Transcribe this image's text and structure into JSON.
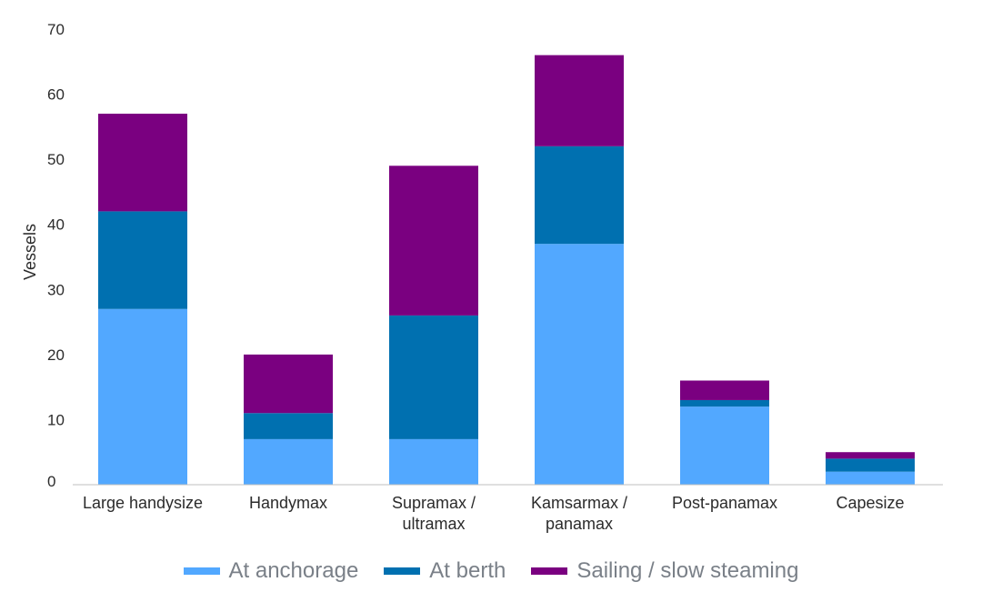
{
  "chart_data": {
    "type": "bar",
    "stacked": true,
    "title": "",
    "xlabel": "",
    "ylabel": "Vessels",
    "ylim": [
      0,
      70
    ],
    "yticks": [
      0,
      10,
      20,
      30,
      40,
      50,
      60,
      70
    ],
    "grid": false,
    "legend_position": "bottom",
    "categories": [
      [
        "Large handysize"
      ],
      [
        "Handymax"
      ],
      [
        "Supramax /",
        "ultramax"
      ],
      [
        "Kamsarmax /",
        "panamax"
      ],
      [
        "Post-panamax"
      ],
      [
        "Capesize"
      ]
    ],
    "series": [
      {
        "name": "At anchorage",
        "color": "#52a8ff",
        "values": [
          27,
          7,
          7,
          37,
          12,
          2
        ]
      },
      {
        "name": "At berth",
        "color": "#0070b0",
        "values": [
          15,
          4,
          19,
          15,
          1,
          2
        ]
      },
      {
        "name": "Sailing / slow steaming",
        "color": "#7a0080",
        "values": [
          15,
          9,
          23,
          14,
          3,
          1
        ]
      }
    ]
  }
}
